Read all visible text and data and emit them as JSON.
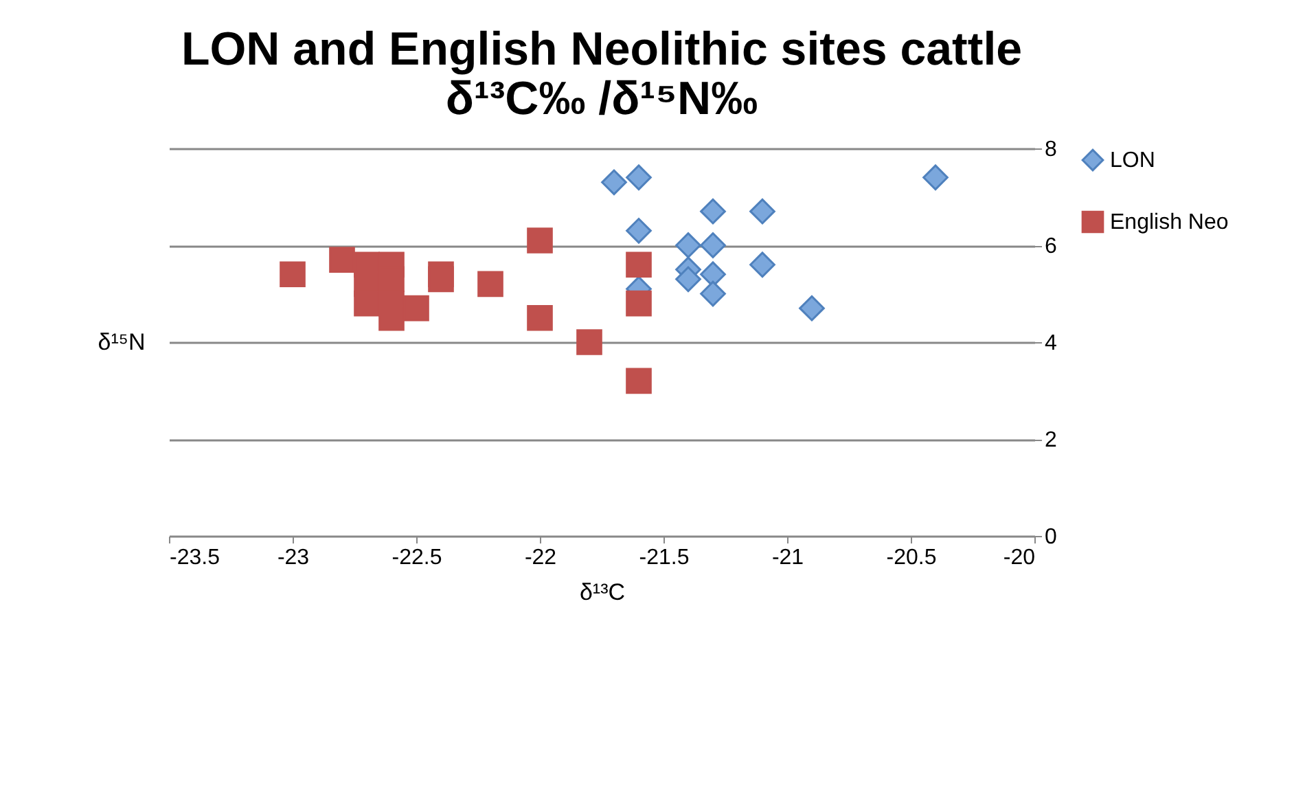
{
  "chart_data": {
    "type": "scatter",
    "title": [
      "LON and English Neolithic sites cattle",
      "δ¹³C‰ /δ¹⁵N‰"
    ],
    "xlabel": "δ¹³C",
    "ylabel": "δ¹⁵N",
    "series": [
      {
        "name": "LON",
        "color": "#7ba7dc",
        "marker": "diamond",
        "x": [
          -21.7,
          -21.6,
          -21.6,
          -21.6,
          -21.4,
          -21.3,
          -21.3,
          -21.4,
          -21.4,
          -21.3,
          -21.3,
          -21.1,
          -21.1,
          -20.9,
          -20.4
        ],
        "values": [
          7.3,
          7.4,
          6.3,
          5.1,
          6.0,
          6.0,
          6.7,
          5.5,
          5.3,
          5.4,
          5.0,
          6.7,
          5.6,
          4.7,
          7.4
        ]
      },
      {
        "name": "English Neo",
        "color": "#c0504d",
        "marker": "square",
        "x": [
          -23.0,
          -22.8,
          -22.7,
          -22.7,
          -22.7,
          -22.6,
          -22.6,
          -22.6,
          -22.6,
          -22.5,
          -22.4,
          -22.4,
          -22.2,
          -22.0,
          -22.0,
          -21.8,
          -21.6,
          -21.6,
          -21.6
        ],
        "values": [
          5.4,
          5.7,
          5.6,
          5.2,
          4.8,
          5.6,
          5.3,
          4.8,
          4.5,
          4.7,
          5.4,
          5.3,
          5.2,
          6.1,
          4.5,
          4.0,
          5.6,
          4.8,
          3.2
        ]
      }
    ],
    "xlim": [
      -23.5,
      -20
    ],
    "xticks": [
      -23.5,
      -23,
      -22.5,
      -22,
      -21.5,
      -21,
      -20.5,
      -20
    ],
    "ylim": [
      0,
      8
    ],
    "yticks": [
      0,
      2,
      4,
      6,
      8
    ],
    "grid": "y",
    "legend": "right"
  }
}
